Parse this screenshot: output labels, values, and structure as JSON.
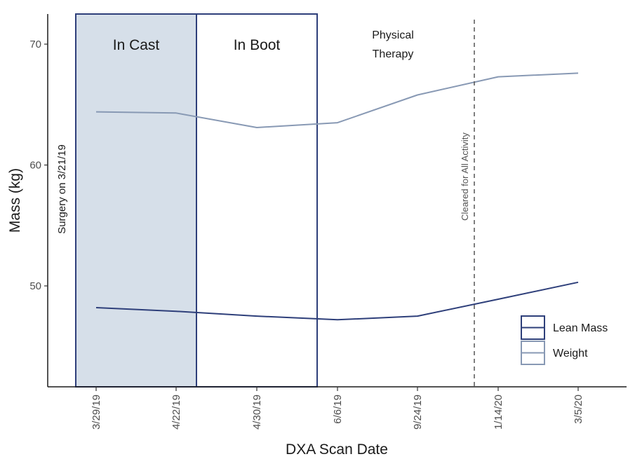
{
  "chart_data": {
    "type": "line",
    "xlabel": "DXA Scan Date",
    "ylabel": "Mass (kg)",
    "categories": [
      "3/29/19",
      "4/22/19",
      "4/30/19",
      "6/6/19",
      "9/24/19",
      "1/14/20",
      "3/5/20"
    ],
    "yticks": [
      50,
      60,
      70
    ],
    "ylim": [
      41.5,
      72.5
    ],
    "grid": false,
    "legend_position": "bottom-right",
    "series": [
      {
        "name": "Lean Mass",
        "color": "#2e3f7a",
        "values": [
          48.2,
          47.9,
          47.5,
          47.2,
          47.5,
          48.9,
          50.3
        ]
      },
      {
        "name": "Weight",
        "color": "#8899b4",
        "values": [
          64.4,
          64.3,
          63.1,
          63.5,
          65.8,
          67.3,
          67.6
        ]
      }
    ],
    "phases": [
      {
        "label": "In Cast",
        "fill": "#d6dfe9",
        "border": "#2e3f7a"
      },
      {
        "label": "In Boot",
        "fill": "#ffffff",
        "border": "#2e3f7a"
      }
    ],
    "physical_therapy_label": [
      "Physical",
      "Therapy"
    ],
    "surgery_label": "Surgery on 3/21/19",
    "cleared_label": "Cleared for All Activity"
  }
}
